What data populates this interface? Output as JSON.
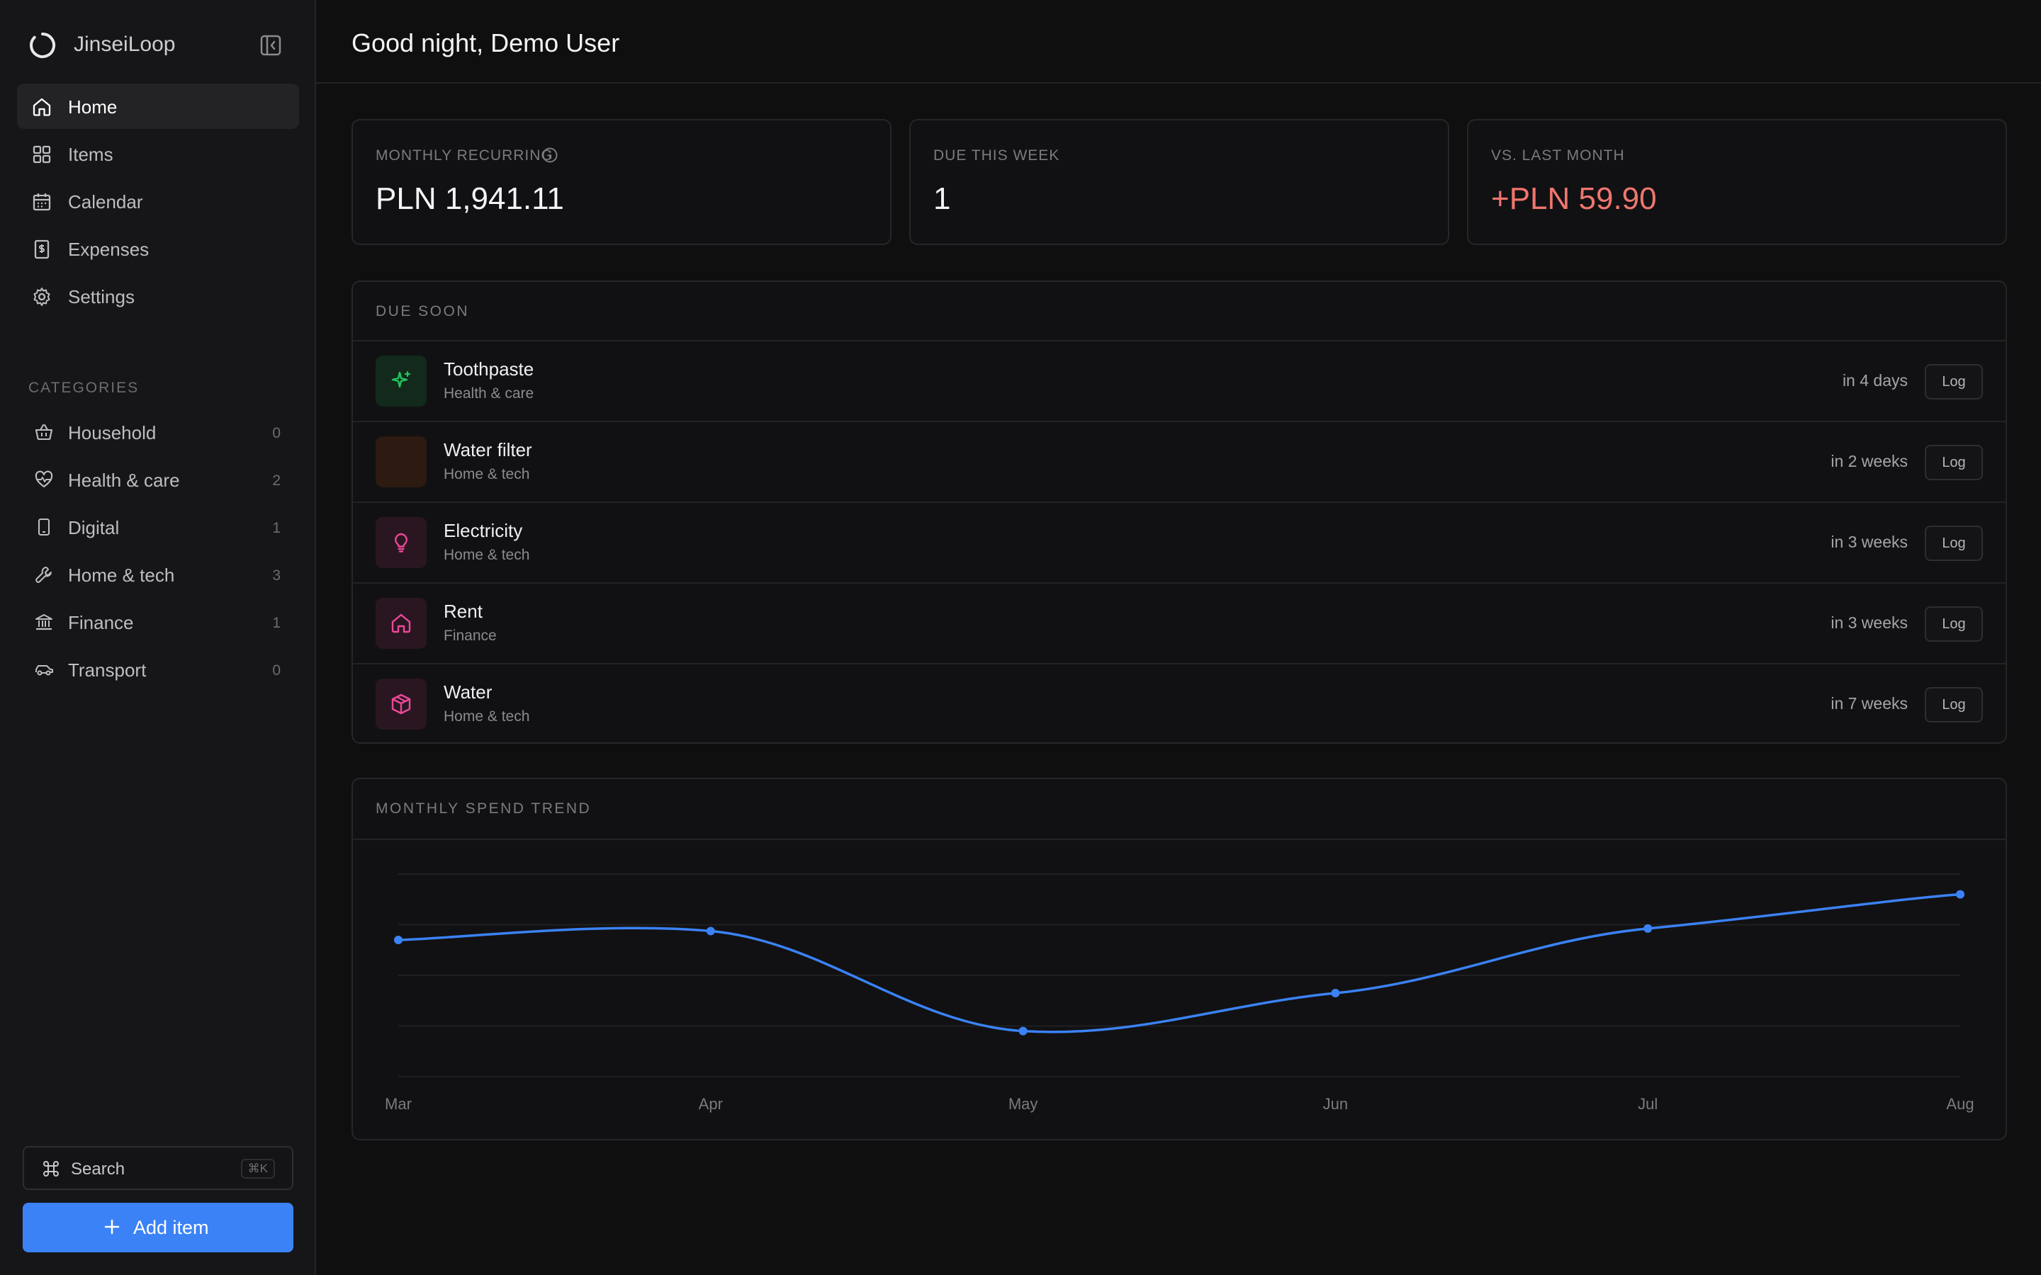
{
  "app": {
    "name": "JinseiLoop"
  },
  "header": {
    "greeting": "Good night, Demo User"
  },
  "nav": [
    {
      "label": "Home",
      "icon": "home-icon",
      "active": true
    },
    {
      "label": "Items",
      "icon": "grid-icon"
    },
    {
      "label": "Calendar",
      "icon": "calendar-icon"
    },
    {
      "label": "Expenses",
      "icon": "receipt-icon"
    },
    {
      "label": "Settings",
      "icon": "gear-icon"
    }
  ],
  "categories": {
    "heading": "CATEGORIES",
    "items": [
      {
        "label": "Household",
        "count": "0",
        "icon": "basket-icon"
      },
      {
        "label": "Health & care",
        "count": "2",
        "icon": "heart-pulse-icon"
      },
      {
        "label": "Digital",
        "count": "1",
        "icon": "phone-icon"
      },
      {
        "label": "Home & tech",
        "count": "3",
        "icon": "wrench-icon"
      },
      {
        "label": "Finance",
        "count": "1",
        "icon": "bank-icon"
      },
      {
        "label": "Transport",
        "count": "0",
        "icon": "car-icon"
      }
    ]
  },
  "search": {
    "label": "Search",
    "shortcut": "⌘K"
  },
  "add_button": {
    "label": "Add item"
  },
  "stats": [
    {
      "label": "MONTHLY RECURRING",
      "value": "PLN 1,941.11",
      "has_info": true
    },
    {
      "label": "DUE THIS WEEK",
      "value": "1"
    },
    {
      "label": "VS. LAST MONTH",
      "value": "+PLN 59.90",
      "color": "#f0766e"
    }
  ],
  "due_soon": {
    "heading": "DUE SOON",
    "log_label": "Log",
    "items": [
      {
        "name": "Toothpaste",
        "category": "Health & care",
        "when": "in 4 days",
        "icon": "sparkle-icon",
        "color": "#22c55e",
        "bg": "#12291c"
      },
      {
        "name": "Water filter",
        "category": "Home & tech",
        "when": "in 2 weeks",
        "icon": "droplets-icon",
        "color": "#f97316",
        "bg": "#2d1a10"
      },
      {
        "name": "Electricity",
        "category": "Home & tech",
        "when": "in 3 weeks",
        "icon": "lightbulb-icon",
        "color": "#ec4899",
        "bg": "#2a1621"
      },
      {
        "name": "Rent",
        "category": "Finance",
        "when": "in 3 weeks",
        "icon": "house-icon",
        "color": "#ec4899",
        "bg": "#2a1621"
      },
      {
        "name": "Water",
        "category": "Home & tech",
        "when": "in 7 weeks",
        "icon": "box-icon",
        "color": "#ec4899",
        "bg": "#2a1621"
      }
    ]
  },
  "trend": {
    "heading": "MONTHLY SPEND TREND"
  },
  "chart_data": {
    "type": "line",
    "categories": [
      "Mar",
      "Apr",
      "May",
      "Jun",
      "Jul",
      "Aug"
    ],
    "values": [
      2040,
      2075,
      1680,
      1830,
      2085,
      2220
    ],
    "ylim": [
      1500,
      2300
    ],
    "grid": true,
    "color": "#3b82f6"
  }
}
